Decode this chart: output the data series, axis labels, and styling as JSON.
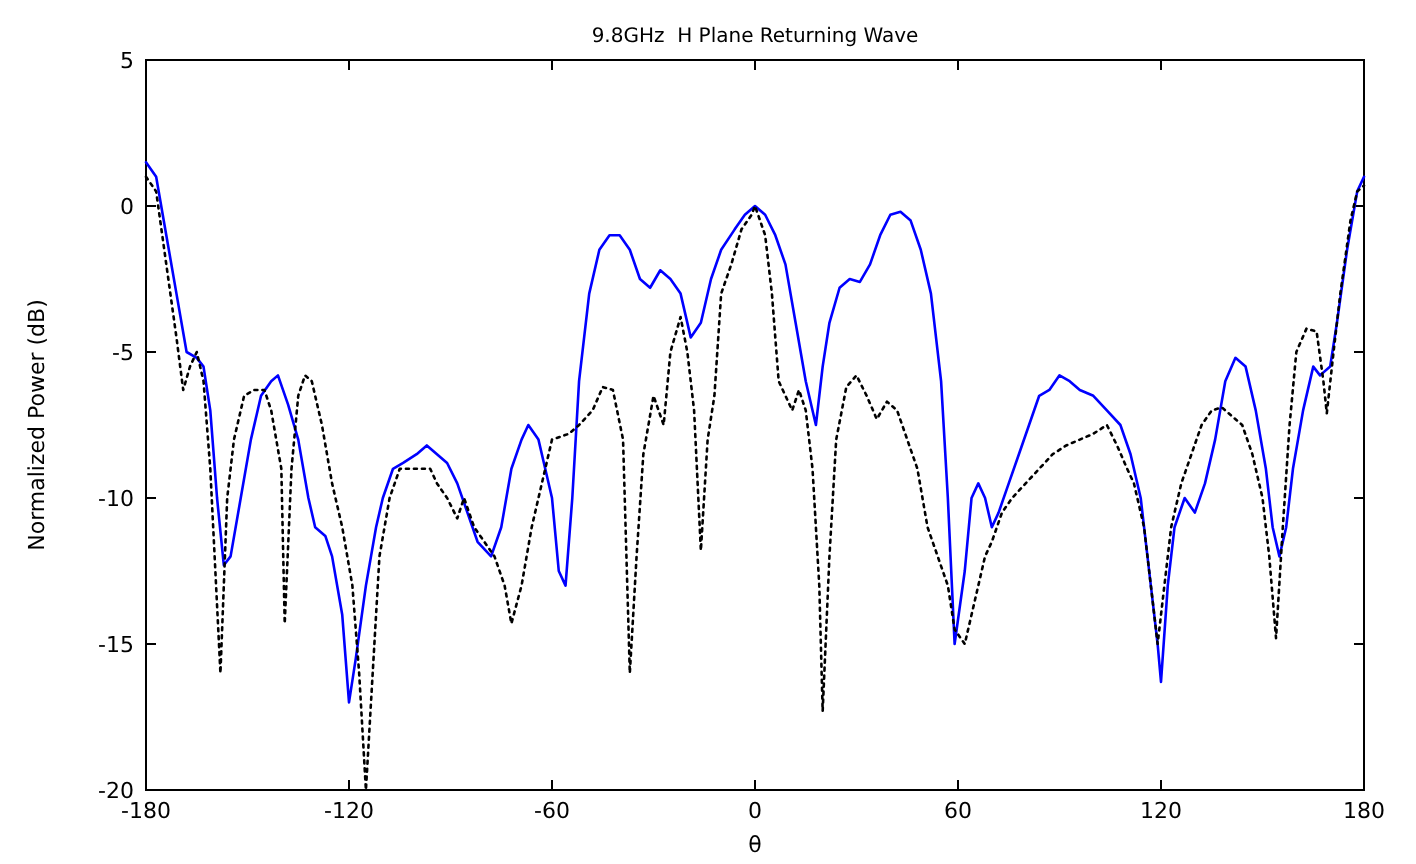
{
  "chart_data": {
    "type": "line",
    "title": "9.8GHz  H Plane Returning Wave",
    "xlabel": "θ",
    "ylabel": "Normalized Power (dB)",
    "xlim": [
      -180,
      180
    ],
    "ylim": [
      -20,
      5
    ],
    "xticks": [
      -180,
      -120,
      -60,
      0,
      60,
      120,
      180
    ],
    "yticks": [
      -20,
      -15,
      -10,
      -5,
      0,
      5
    ],
    "marker": "none",
    "series": [
      {
        "color": "#0000ff",
        "line_style": "solid",
        "x": [
          -180,
          -177,
          -174,
          -171,
          -168,
          -165,
          -163,
          -161,
          -159,
          -157,
          -155,
          -152,
          -149,
          -146,
          -143,
          -141,
          -138,
          -135,
          -132,
          -130,
          -127,
          -125,
          -122,
          -120,
          -118,
          -115,
          -112,
          -110,
          -107,
          -104,
          -100,
          -97,
          -94,
          -91,
          -88,
          -85,
          -82,
          -78,
          -75,
          -72,
          -69,
          -67,
          -64,
          -62,
          -60,
          -58,
          -56,
          -54,
          -52,
          -49,
          -46,
          -43,
          -40,
          -37,
          -34,
          -31,
          -28,
          -25,
          -22,
          -19,
          -16,
          -13,
          -10,
          -6,
          -3,
          0,
          3,
          6,
          9,
          12,
          15,
          18,
          20,
          22,
          25,
          28,
          31,
          34,
          37,
          40,
          43,
          46,
          49,
          52,
          55,
          57,
          59,
          62,
          64,
          66,
          68,
          70,
          72,
          75,
          78,
          81,
          84,
          87,
          90,
          93,
          96,
          100,
          104,
          108,
          111,
          114,
          117,
          119,
          120,
          122,
          124,
          127,
          130,
          133,
          136,
          139,
          142,
          145,
          148,
          151,
          153,
          155,
          157,
          159,
          162,
          165,
          167,
          170,
          172,
          175,
          178,
          180
        ],
        "values": [
          1.5,
          1,
          -1,
          -3,
          -5,
          -5.2,
          -5.5,
          -7,
          -10,
          -12.3,
          -12,
          -10,
          -8,
          -6.5,
          -6,
          -5.8,
          -6.8,
          -8,
          -10,
          -11,
          -11.3,
          -12,
          -14,
          -17,
          -15.5,
          -13,
          -11,
          -10,
          -9,
          -8.8,
          -8.5,
          -8.2,
          -8.5,
          -8.8,
          -9.5,
          -10.5,
          -11.5,
          -12,
          -11,
          -9,
          -8,
          -7.5,
          -8,
          -9,
          -10,
          -12.5,
          -13,
          -10,
          -6,
          -3,
          -1.5,
          -1,
          -1,
          -1.5,
          -2.5,
          -2.8,
          -2.2,
          -2.5,
          -3,
          -4.5,
          -4,
          -2.5,
          -1.5,
          -0.8,
          -0.3,
          0,
          -0.3,
          -1,
          -2,
          -4,
          -6,
          -7.5,
          -5.5,
          -4,
          -2.8,
          -2.5,
          -2.6,
          -2,
          -1,
          -0.3,
          -0.2,
          -0.5,
          -1.5,
          -3,
          -6,
          -10,
          -15,
          -12.5,
          -10,
          -9.5,
          -10,
          -11,
          -10.5,
          -9.5,
          -8.5,
          -7.5,
          -6.5,
          -6.3,
          -5.8,
          -6,
          -6.3,
          -6.5,
          -7,
          -7.5,
          -8.5,
          -10,
          -13,
          -15,
          -16.3,
          -13,
          -11,
          -10,
          -10.5,
          -9.5,
          -8,
          -6,
          -5.2,
          -5.5,
          -7,
          -9,
          -11,
          -12,
          -11,
          -9,
          -7,
          -5.5,
          -5.8,
          -5.5,
          -4,
          -1.5,
          0.5,
          1
        ]
      },
      {
        "color": "#000000",
        "line_style": "dotted",
        "x": [
          -180,
          -177,
          -174,
          -171,
          -169,
          -167,
          -165,
          -163,
          -161,
          -158,
          -156,
          -154,
          -151,
          -148,
          -145,
          -143,
          -140,
          -139,
          -137,
          -135,
          -133,
          -131,
          -128,
          -125,
          -122,
          -119,
          -117,
          -115,
          -113,
          -111,
          -108,
          -105,
          -100,
          -96,
          -94,
          -91,
          -88,
          -86,
          -83,
          -80,
          -77,
          -74,
          -72,
          -69,
          -66,
          -63,
          -60,
          -55,
          -52,
          -48,
          -45,
          -42,
          -39,
          -37,
          -35,
          -33,
          -30,
          -27,
          -25,
          -22,
          -20,
          -18,
          -16,
          -14,
          -12,
          -10,
          -7,
          -4,
          -1,
          0,
          3,
          5,
          7,
          9,
          11,
          13,
          15,
          17,
          19,
          20,
          22,
          24,
          27,
          30,
          33,
          36,
          39,
          42,
          45,
          48,
          51,
          54,
          57,
          59,
          62,
          64,
          66,
          68,
          70,
          73,
          76,
          80,
          84,
          88,
          92,
          96,
          100,
          104,
          107,
          110,
          112,
          115,
          118,
          119,
          121,
          123,
          126,
          129,
          132,
          135,
          138,
          141,
          144,
          147,
          150,
          152,
          154,
          156,
          158,
          160,
          163,
          166,
          168,
          169,
          171,
          173,
          176,
          178,
          180
        ],
        "values": [
          1,
          0.5,
          -2,
          -4.5,
          -6.3,
          -5.5,
          -5,
          -6,
          -9,
          -16,
          -10,
          -8,
          -6.5,
          -6.3,
          -6.3,
          -7,
          -9,
          -14.3,
          -9,
          -6.5,
          -5.8,
          -6,
          -7.5,
          -9.5,
          -11,
          -13,
          -16,
          -20,
          -16,
          -12,
          -10,
          -9,
          -9,
          -9,
          -9.5,
          -10,
          -10.7,
          -10,
          -11,
          -11.5,
          -12,
          -13,
          -14.3,
          -13,
          -11,
          -9.5,
          -8,
          -7.8,
          -7.5,
          -7,
          -6.2,
          -6.3,
          -8,
          -16,
          -12,
          -8.5,
          -6.5,
          -7.5,
          -5,
          -3.8,
          -5,
          -7,
          -11.8,
          -8,
          -6.5,
          -3,
          -2,
          -0.8,
          -0.3,
          0,
          -1,
          -3,
          -6,
          -6.5,
          -7,
          -6.3,
          -7,
          -9,
          -13,
          -17.3,
          -12,
          -8,
          -6.2,
          -5.8,
          -6.5,
          -7.3,
          -6.7,
          -7,
          -8,
          -9,
          -11,
          -12,
          -13,
          -14.5,
          -15,
          -14,
          -13,
          -12,
          -11.5,
          -10.5,
          -10,
          -9.5,
          -9,
          -8.5,
          -8.2,
          -8,
          -7.8,
          -7.5,
          -8.2,
          -9,
          -9.5,
          -11,
          -14,
          -15,
          -13,
          -11,
          -9.5,
          -8.5,
          -7.5,
          -7,
          -6.9,
          -7.2,
          -7.5,
          -8.5,
          -10,
          -12,
          -14.8,
          -11,
          -7.5,
          -5,
          -4.2,
          -4.3,
          -6,
          -7.1,
          -5,
          -3,
          -0.5,
          0.5,
          0.7
        ]
      }
    ]
  }
}
